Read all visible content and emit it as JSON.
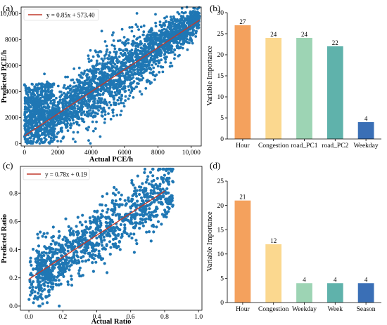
{
  "chart_data": [
    {
      "id": "a",
      "type": "scatter",
      "panel_label": "(a)",
      "xlabel": "Actual PCE/h",
      "ylabel": "Predicted PCE/h",
      "xlim": [
        -200,
        10600
      ],
      "ylim": [
        -200,
        10500
      ],
      "xticks": [
        0,
        2000,
        4000,
        6000,
        8000,
        10000
      ],
      "yticks": [
        0,
        2000,
        4000,
        6000,
        8000,
        10000
      ],
      "xtick_labels": [
        "0",
        "2000",
        "4000",
        "6000",
        "8000",
        "10,000"
      ],
      "ytick_labels": [
        "0",
        "2000",
        "4000",
        "6000",
        "8000",
        "10,000"
      ],
      "fit": {
        "label": "y = 0.85x + 573.40",
        "slope": 0.85,
        "intercept": 573.4,
        "x_range": [
          0,
          10500
        ]
      },
      "legend_position": "top-left",
      "point_color": "#1f77b4",
      "line_color": "#c0392b",
      "grid": false
    },
    {
      "id": "b",
      "type": "bar",
      "panel_label": "(b)",
      "categories": [
        "Hour",
        "Congestion",
        "road_PC1",
        "road_PC2",
        "Weekday"
      ],
      "values": [
        27,
        24,
        24,
        22,
        4
      ],
      "value_labels": [
        "27",
        "24",
        "24",
        "22",
        "4"
      ],
      "colors": [
        "#f4a15d",
        "#fbd88f",
        "#9dd4b4",
        "#5fb2ab",
        "#3a6fb6"
      ],
      "ylabel": "Variable Importance",
      "xlabel": "",
      "ylim": [
        0,
        30
      ],
      "yticks": [
        0,
        5,
        10,
        15,
        20,
        25,
        30
      ],
      "grid": false
    },
    {
      "id": "c",
      "type": "scatter",
      "panel_label": "(c)",
      "xlabel": "Actual Ratio",
      "ylabel": "Predicted Ratio",
      "xlim": [
        -0.05,
        1.02
      ],
      "ylim": [
        -0.03,
        0.99
      ],
      "xticks": [
        0.0,
        0.2,
        0.4,
        0.6,
        0.8,
        1.0
      ],
      "yticks": [
        0.0,
        0.2,
        0.4,
        0.6,
        0.8
      ],
      "xtick_labels": [
        "0.0",
        "0.2",
        "0.4",
        "0.6",
        "0.8",
        "1.0"
      ],
      "ytick_labels": [
        "0.0",
        "0.2",
        "0.4",
        "0.6",
        "0.8"
      ],
      "fit": {
        "label": "y = 0.78x + 0.19",
        "slope": 0.78,
        "intercept": 0.19,
        "x_range": [
          0.0,
          0.8
        ]
      },
      "legend_position": "top-left",
      "point_color": "#1f77b4",
      "line_color": "#c0392b",
      "grid": false
    },
    {
      "id": "d",
      "type": "bar",
      "panel_label": "(d)",
      "categories": [
        "Hour",
        "Congestion",
        "Weekday",
        "Week",
        "Season"
      ],
      "values": [
        21,
        12,
        4,
        4,
        4
      ],
      "value_labels": [
        "21",
        "12",
        "4",
        "4",
        "4"
      ],
      "colors": [
        "#f4a15d",
        "#fbd88f",
        "#9dd4b4",
        "#5fb2ab",
        "#3a6fb6"
      ],
      "ylabel": "Variable Importance",
      "xlabel": "",
      "ylim": [
        0,
        25
      ],
      "yticks": [
        0,
        5,
        10,
        15,
        20,
        25
      ],
      "grid": false
    }
  ]
}
